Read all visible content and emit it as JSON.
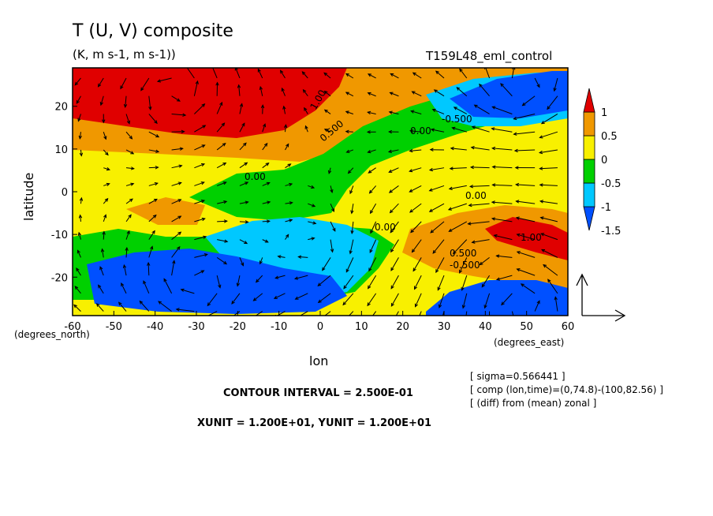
{
  "chart_data": {
    "type": "heatmap",
    "title": "T (U, V) composite",
    "subtitle": "(K, m s-1, m s-1))",
    "experiment": "T159L48_eml_control",
    "xlabel": "lon",
    "ylabel": "latitude",
    "x_unit_label": "(degrees_east)",
    "y_unit_label": "(degrees_north)",
    "xlim": [
      -60,
      60
    ],
    "ylim": [
      -29,
      29
    ],
    "x_ticks": [
      "-60",
      "-50",
      "-40",
      "-30",
      "-20",
      "-10",
      "0",
      "10",
      "20",
      "30",
      "40",
      "50",
      "60"
    ],
    "y_ticks": [
      "20",
      "10",
      "0",
      "-10",
      "-20"
    ],
    "colorbar": {
      "labels": [
        "1",
        "0.5",
        "0",
        "-0.5",
        "-1",
        "-1.5"
      ],
      "levels": [
        1,
        0.5,
        0,
        -0.5,
        -1,
        -1.5
      ],
      "colors": [
        "#0050ff",
        "#00c8ff",
        "#00d000",
        "#f8f000",
        "#f09800",
        "#e00000"
      ]
    },
    "contour_labels": [
      "1.00",
      "0.500",
      "0.00",
      "0.00",
      "0.00",
      "0.00",
      "-0.500",
      "1.00",
      "0.500",
      "-0.500"
    ],
    "footer": {
      "contour_interval": "CONTOUR INTERVAL = 2.500E-01",
      "units": "XUNIT = 1.200E+01, YUNIT = 1.200E+01"
    },
    "notes": [
      "[ sigma=0.566441 ]",
      "[ comp (lon,time)=(0,74.8)-(100,82.56) ]",
      "[ (diff) from (mean) zonal ]"
    ],
    "field": [
      {
        "lon": -50,
        "lat": 23,
        "value": 1.1
      },
      {
        "lon": -35,
        "lat": 23,
        "value": 1.2
      },
      {
        "lon": -25,
        "lat": 22,
        "value": 1.1
      },
      {
        "lon": -40,
        "lat": 15,
        "value": 0.6
      },
      {
        "lon": -30,
        "lat": 5,
        "value": 0.1
      },
      {
        "lon": -5,
        "lat": 8,
        "value": -0.3
      },
      {
        "lon": -45,
        "lat": -5,
        "value": 0.1
      },
      {
        "lon": -35,
        "lat": -12,
        "value": -0.3
      },
      {
        "lon": -30,
        "lat": -22,
        "value": -1.6
      },
      {
        "lon": -5,
        "lat": -16,
        "value": -0.9
      },
      {
        "lon": 5,
        "lat": -20,
        "value": -0.8
      },
      {
        "lon": 35,
        "lat": 22,
        "value": -0.7
      },
      {
        "lon": 52,
        "lat": 22,
        "value": -1.6
      },
      {
        "lon": 10,
        "lat": 16,
        "value": -0.2
      },
      {
        "lon": 25,
        "lat": 10,
        "value": 0.2
      },
      {
        "lon": 50,
        "lat": -10,
        "value": 1.1
      },
      {
        "lon": 40,
        "lat": -18,
        "value": 0.6
      },
      {
        "lon": 48,
        "lat": -26,
        "value": -1.6
      },
      {
        "lon": 15,
        "lat": -8,
        "value": 0.2
      }
    ]
  }
}
